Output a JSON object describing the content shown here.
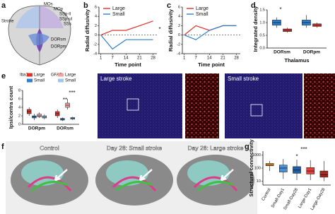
{
  "panels": [
    "a",
    "b",
    "c",
    "d",
    "e",
    "f",
    "g"
  ],
  "brain_labels": [
    "Stroke",
    "MOs",
    "MOp",
    "SSp-ll",
    "SSp-ul",
    "SSs",
    "DORsm",
    "DORpm"
  ],
  "micrographs": [
    "Large stroke",
    "Small stroke"
  ],
  "tract_images": [
    "Control",
    "Day 28: Small stroke",
    "Day 28: Large stroke"
  ],
  "chart_data": [
    {
      "type": "line",
      "ylabel": "Radial diffusivity",
      "xlabel": "Time point",
      "x": [
        1,
        7,
        14,
        21,
        28
      ],
      "xlim": [
        0,
        30
      ],
      "xticks": [
        1,
        7,
        14,
        21,
        28
      ],
      "ylim": [
        -4,
        6
      ],
      "yticks": [
        -4,
        -2,
        0,
        2,
        4,
        6
      ],
      "series": [
        {
          "name": "Large",
          "color": "#e0312b",
          "values": [
            0,
            1,
            1,
            2,
            3
          ]
        },
        {
          "name": "Small",
          "color": "#2f7fd0",
          "values": [
            0,
            -3,
            -1,
            -1,
            -1
          ]
        }
      ],
      "annotations": [
        "*"
      ]
    },
    {
      "type": "line",
      "ylabel": "Radial diffusivity",
      "xlabel": "Time point",
      "x": [
        1,
        7,
        14,
        21,
        28
      ],
      "xlim": [
        0,
        30
      ],
      "xticks": [
        1,
        7,
        14,
        21,
        28
      ],
      "ylim": [
        -4,
        6
      ],
      "yticks": [
        -4,
        -2,
        0,
        2,
        4,
        6
      ],
      "series": [
        {
          "name": "Large",
          "color": "#e0312b",
          "values": [
            0,
            2,
            1,
            2,
            2
          ]
        },
        {
          "name": "Small",
          "color": "#2f7fd0",
          "values": [
            0,
            -1,
            1,
            2,
            2
          ]
        }
      ],
      "annotations": []
    },
    {
      "type": "box",
      "ylabel": "Integrated density",
      "xlabel": "Thalamus",
      "categories": [
        "DORsm",
        "DORpm"
      ],
      "ylim": [
        0,
        1.5
      ],
      "yticks": [
        {
          "value": 0,
          "label": "0.0"
        },
        {
          "value": 0.5,
          "label": "0.5"
        },
        {
          "value": 1,
          "label": "1.0"
        },
        {
          "value": 1.5,
          "label": "1.5"
        }
      ],
      "series": [
        {
          "color": "#2f7fd0",
          "min": [
            0.8,
            0.8
          ],
          "q1": [
            0.9,
            0.9
          ],
          "median": [
            1.0,
            1.0
          ],
          "q3": [
            1.1,
            1.1
          ],
          "max": [
            1.2,
            1.3
          ]
        },
        {
          "color": "#e0312b",
          "min": [
            0.6,
            0.8
          ],
          "q1": [
            0.65,
            0.85
          ],
          "median": [
            0.7,
            0.9
          ],
          "q3": [
            0.75,
            0.95
          ],
          "max": [
            0.8,
            1.0
          ]
        }
      ],
      "annotations": [
        "*"
      ]
    },
    {
      "type": "box",
      "ylabel": "Ipsi/contra count",
      "categories": [
        "DORpm",
        "DORsm"
      ],
      "ylim": [
        0,
        8
      ],
      "yticks": [
        0,
        2,
        4,
        6,
        8
      ],
      "legend_groups": [
        "Iba1",
        "GFAP"
      ],
      "series": [
        {
          "name": "Large",
          "color": "#e0312b",
          "min": [
            2,
            1.5
          ],
          "q1": [
            2.5,
            2
          ],
          "median": [
            3,
            2.5
          ],
          "q3": [
            3.5,
            3
          ],
          "max": [
            4,
            3.5
          ]
        },
        {
          "name": "Small",
          "color": "#2f7fd0",
          "min": [
            1,
            0.8
          ],
          "q1": [
            1.5,
            1
          ],
          "median": [
            1.8,
            1.2
          ],
          "q3": [
            2,
            1.4
          ],
          "max": [
            2.5,
            1.6
          ]
        },
        {
          "name": "Large",
          "color": "#f2a0a0",
          "min": [
            1.5,
            3.5
          ],
          "q1": [
            1.8,
            4
          ],
          "median": [
            2,
            4.5
          ],
          "q3": [
            2.4,
            5
          ],
          "max": [
            2.8,
            6
          ]
        },
        {
          "name": "Small",
          "color": "#9fc5ec",
          "min": [
            1.2,
            1
          ],
          "q1": [
            1.5,
            1.2
          ],
          "median": [
            1.7,
            1.4
          ],
          "q3": [
            2,
            1.6
          ],
          "max": [
            2.3,
            1.8
          ]
        }
      ],
      "annotations": [
        "**",
        "***"
      ]
    },
    {
      "type": "box",
      "ylabel": "Structural connectivity",
      "log": true,
      "categories": [
        "Control",
        "Small-Day1",
        "Small-Day28",
        "Large-Day1",
        "Large-Day28"
      ],
      "ylim": [
        5,
        2000
      ],
      "yticks": [
        10,
        100,
        1000
      ],
      "series": [
        {
          "colors": [
            "#f39c34",
            "#4a90d9",
            "#1f5fa8",
            "#e0413a",
            "#a82820"
          ],
          "min": [
            60,
            15,
            12,
            12,
            10
          ],
          "q1": [
            150,
            50,
            40,
            35,
            20
          ],
          "median": [
            180,
            100,
            70,
            60,
            30
          ],
          "q3": [
            230,
            170,
            130,
            110,
            60
          ],
          "max": [
            350,
            500,
            450,
            400,
            350
          ]
        }
      ],
      "annotations": [
        "*",
        "***"
      ]
    }
  ]
}
